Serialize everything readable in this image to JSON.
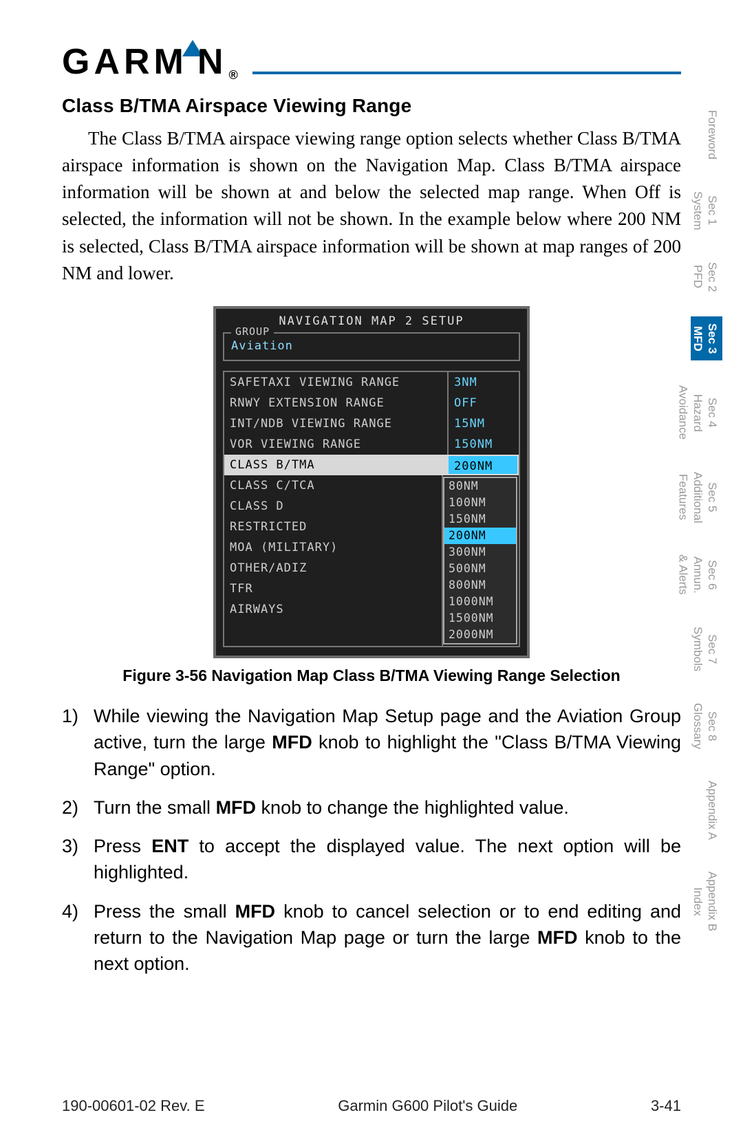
{
  "logo": {
    "text_left": "GARM",
    "text_right": "N",
    "registered": "®"
  },
  "heading": "Class B/TMA Airspace Viewing Range",
  "paragraph": "The Class B/TMA airspace viewing range option selects whether Class B/TMA airspace information is shown on the Navigation Map. Class B/TMA airspace information will be shown at and below the selected map range. When Off is selected, the information will not be shown. In the example below where 200 NM is selected, Class B/TMA airspace information will be shown at map ranges of 200 NM and lower.",
  "device": {
    "title": "NAVIGATION MAP 2 SETUP",
    "group_label": "GROUP",
    "group_value": "Aviation",
    "rows_top": [
      {
        "label": "SAFETAXI VIEWING RANGE",
        "value": "3NM"
      },
      {
        "label": "RNWY EXTENSION RANGE",
        "value": "OFF"
      },
      {
        "label": "INT/NDB VIEWING RANGE",
        "value": "15NM"
      },
      {
        "label": "VOR VIEWING RANGE",
        "value": "150NM"
      }
    ],
    "selected_row": {
      "label": "CLASS B/TMA",
      "value": "200NM"
    },
    "rows_list": [
      "CLASS C/TCA",
      "CLASS D",
      "RESTRICTED",
      "MOA (MILITARY)",
      "OTHER/ADIZ",
      "TFR",
      "AIRWAYS"
    ],
    "dropdown": [
      "80NM",
      "100NM",
      "150NM",
      "200NM",
      "300NM",
      "500NM",
      "800NM",
      "1000NM",
      "1500NM",
      "2000NM"
    ],
    "dropdown_selected": "200NM"
  },
  "figure_caption": "Figure 3-56  Navigation Map Class B/TMA Viewing Range Selection",
  "steps": [
    {
      "n": "1)",
      "pre": "While viewing the Navigation Map Setup page and the Aviation Group active, turn the large ",
      "b1": "MFD",
      "post": " knob to highlight the \"Class B/TMA Viewing Range\" option."
    },
    {
      "n": "2)",
      "pre": "Turn the small ",
      "b1": "MFD",
      "post": " knob to change the highlighted value."
    },
    {
      "n": "3)",
      "pre": "Press ",
      "b1": "ENT",
      "post": " to accept the displayed value. The next option will be highlighted."
    },
    {
      "n": "4)",
      "pre": "Press the small ",
      "b1": "MFD",
      "mid": " knob to cancel selection or to end editing and return to the Navigation Map page or turn the large ",
      "b2": "MFD",
      "post": " knob to the next option."
    }
  ],
  "side_tabs": [
    {
      "label": "Foreword",
      "active": false
    },
    {
      "label": "Sec 1\nSystem",
      "active": false
    },
    {
      "label": "Sec 2\nPFD",
      "active": false
    },
    {
      "label": "Sec 3\nMFD",
      "active": true
    },
    {
      "label": "Sec 4\nHazard\nAvoidance",
      "active": false
    },
    {
      "label": "Sec 5\nAdditional\nFeatures",
      "active": false
    },
    {
      "label": "Sec 6\nAnnun.\n& Alerts",
      "active": false
    },
    {
      "label": "Sec 7\nSymbols",
      "active": false
    },
    {
      "label": "Sec 8\nGlossary",
      "active": false
    },
    {
      "label": "Appendix A",
      "active": false
    },
    {
      "label": "Appendix B\nIndex",
      "active": false
    }
  ],
  "footer": {
    "left": "190-00601-02  Rev. E",
    "center": "Garmin G600 Pilot's Guide",
    "right": "3-41"
  },
  "colors": {
    "accent": "#0069aa",
    "device_bg": "#1f1f1f",
    "device_border": "#6b6b6b",
    "value_color": "#68d6ff",
    "highlight": "#38c8ff"
  }
}
